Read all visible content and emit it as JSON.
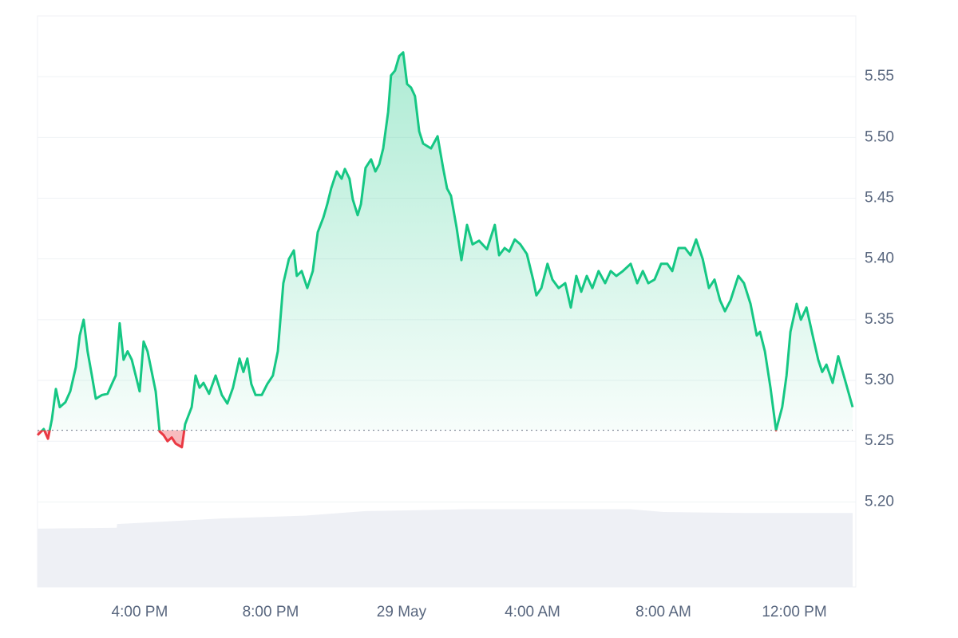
{
  "chart_data": {
    "type": "line",
    "x": [
      12.88,
      13.07,
      13.2,
      13.32,
      13.44,
      13.56,
      13.73,
      13.88,
      14.05,
      14.17,
      14.29,
      14.41,
      14.54,
      14.66,
      14.85,
      15.02,
      15.15,
      15.27,
      15.39,
      15.51,
      15.63,
      15.76,
      15.88,
      16.0,
      16.12,
      16.24,
      16.37,
      16.49,
      16.61,
      16.73,
      16.85,
      16.98,
      17.1,
      17.29,
      17.39,
      17.59,
      17.71,
      17.83,
      17.95,
      18.12,
      18.32,
      18.51,
      18.68,
      18.85,
      19.05,
      19.17,
      19.29,
      19.41,
      19.54,
      19.73,
      19.9,
      20.07,
      20.22,
      20.39,
      20.56,
      20.71,
      20.8,
      20.95,
      21.12,
      21.29,
      21.44,
      21.61,
      21.73,
      21.85,
      22.02,
      22.17,
      22.27,
      22.41,
      22.51,
      22.66,
      22.76,
      22.9,
      23.07,
      23.2,
      23.32,
      23.44,
      23.59,
      23.68,
      23.8,
      23.93,
      24.05,
      24.17,
      24.29,
      24.41,
      24.54,
      24.66,
      24.9,
      25.1,
      25.27,
      25.39,
      25.51,
      25.68,
      25.83,
      26.0,
      26.17,
      26.37,
      26.61,
      26.85,
      26.98,
      27.15,
      27.29,
      27.46,
      27.63,
      27.83,
      28.02,
      28.12,
      28.27,
      28.46,
      28.61,
      28.8,
      29.0,
      29.17,
      29.34,
      29.49,
      29.66,
      29.83,
      30.02,
      30.22,
      30.39,
      30.56,
      30.76,
      31.0,
      31.2,
      31.37,
      31.54,
      31.73,
      31.93,
      32.12,
      32.27,
      32.46,
      32.66,
      32.83,
      33.0,
      33.2,
      33.39,
      33.56,
      33.73,
      33.88,
      34.05,
      34.29,
      34.46,
      34.66,
      34.85,
      34.95,
      35.1,
      35.27,
      35.44,
      35.63,
      35.76,
      35.88,
      36.07,
      36.2,
      36.37,
      36.56,
      36.73,
      36.85,
      36.98,
      37.17,
      37.34,
      37.54,
      37.78
    ],
    "series": [
      {
        "color": "#16c784",
        "values": [
          5.255,
          5.26,
          5.252,
          5.268,
          5.293,
          5.278,
          5.282,
          5.291,
          5.311,
          5.337,
          5.35,
          5.324,
          5.304,
          5.285,
          5.288,
          5.289,
          5.297,
          5.304,
          5.347,
          5.317,
          5.324,
          5.317,
          5.304,
          5.291,
          5.332,
          5.324,
          5.307,
          5.291,
          5.258,
          5.255,
          5.25,
          5.253,
          5.248,
          5.245,
          5.264,
          5.278,
          5.304,
          5.294,
          5.298,
          5.289,
          5.304,
          5.288,
          5.281,
          5.294,
          5.318,
          5.307,
          5.318,
          5.297,
          5.288,
          5.288,
          5.297,
          5.304,
          5.324,
          5.38,
          5.4,
          5.407,
          5.386,
          5.39,
          5.376,
          5.39,
          5.422,
          5.434,
          5.445,
          5.458,
          5.472,
          5.466,
          5.474,
          5.466,
          5.449,
          5.436,
          5.445,
          5.475,
          5.482,
          5.472,
          5.478,
          5.491,
          5.521,
          5.551,
          5.555,
          5.567,
          5.57,
          5.544,
          5.541,
          5.534,
          5.505,
          5.495,
          5.491,
          5.501,
          5.475,
          5.458,
          5.452,
          5.426,
          5.399,
          5.428,
          5.412,
          5.415,
          5.408,
          5.428,
          5.403,
          5.409,
          5.406,
          5.416,
          5.412,
          5.404,
          5.383,
          5.37,
          5.376,
          5.396,
          5.383,
          5.376,
          5.38,
          5.36,
          5.386,
          5.373,
          5.386,
          5.376,
          5.39,
          5.38,
          5.39,
          5.386,
          5.39,
          5.396,
          5.38,
          5.39,
          5.38,
          5.383,
          5.396,
          5.396,
          5.39,
          5.409,
          5.409,
          5.403,
          5.416,
          5.4,
          5.376,
          5.383,
          5.366,
          5.357,
          5.366,
          5.386,
          5.38,
          5.363,
          5.337,
          5.34,
          5.324,
          5.294,
          5.259,
          5.278,
          5.304,
          5.34,
          5.363,
          5.35,
          5.36,
          5.337,
          5.317,
          5.307,
          5.313,
          5.298,
          5.32,
          5.301,
          5.278
        ]
      }
    ],
    "baseline": 5.259,
    "up_color": "#16c784",
    "down_color": "#ea3943",
    "volume": {
      "color": "#eef0f5",
      "x": [
        12.88,
        15.3,
        15.31,
        18.5,
        21.0,
        22.9,
        26.0,
        31.0,
        32.0,
        34.5,
        37.78
      ],
      "values": [
        63,
        64,
        68,
        74,
        77,
        82,
        84,
        84,
        81,
        80,
        80
      ],
      "vlim": [
        0,
        100
      ]
    },
    "xlim": [
      12.88,
      37.78
    ],
    "xticks": [
      {
        "value": 16,
        "label": "4:00 PM"
      },
      {
        "value": 20,
        "label": "8:00 PM"
      },
      {
        "value": 24,
        "label": "29 May"
      },
      {
        "value": 28,
        "label": "4:00 AM"
      },
      {
        "value": 32,
        "label": "8:00 AM"
      },
      {
        "value": 36,
        "label": "12:00 PM"
      }
    ],
    "ylim": [
      5.13,
      5.6
    ],
    "yticks": [
      {
        "value": 5.2,
        "label": "5.20"
      },
      5.25,
      {
        "value": 5.3,
        "label": "5.30"
      },
      5.35,
      {
        "value": 5.4,
        "label": "5.40"
      },
      5.45,
      {
        "value": 5.5,
        "label": "5.50"
      },
      5.55
    ],
    "grid": true
  }
}
